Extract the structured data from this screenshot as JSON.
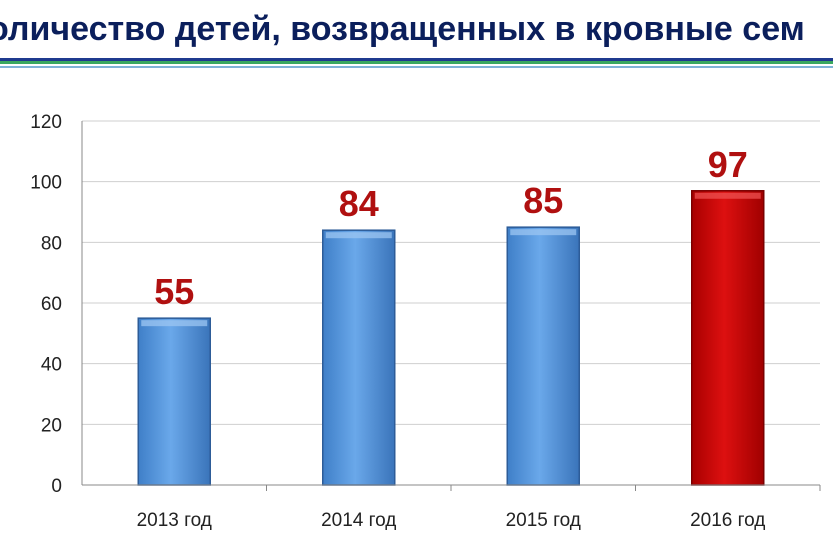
{
  "title": "оличество детей, возвращенных в кровные сем",
  "colors": {
    "bar": "#5b9be0",
    "highlight": "#cc0000",
    "label": "#b01010",
    "title": "#0b1f5c"
  },
  "chart_data": {
    "type": "bar",
    "title": "оличество детей, возвращенных в кровные сем",
    "xlabel": "",
    "ylabel": "",
    "categories": [
      "2013 год",
      "2014 год",
      "2015 год",
      "2016 год"
    ],
    "values": [
      55,
      84,
      85,
      97
    ],
    "highlight_index": 3,
    "data_labels": [
      "55",
      "84",
      "85",
      "97"
    ],
    "ylim": [
      0,
      120
    ],
    "yticks": [
      "0",
      "20",
      "40",
      "60",
      "80",
      "100",
      "120"
    ],
    "grid": true,
    "legend": "none"
  }
}
